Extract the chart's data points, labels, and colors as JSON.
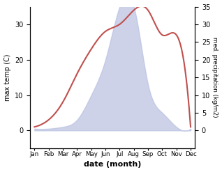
{
  "months": [
    "Jan",
    "Feb",
    "Mar",
    "Apr",
    "May",
    "Jun",
    "Jul",
    "Aug",
    "Sep",
    "Oct",
    "Nov",
    "Dec"
  ],
  "temperature": [
    1,
    3,
    8,
    16,
    23,
    28,
    30,
    34,
    34,
    27,
    27,
    1
  ],
  "precipitation": [
    0.5,
    0.5,
    1,
    3,
    10,
    20,
    35,
    35,
    13,
    5,
    1,
    0.5
  ],
  "temp_color": "#c0504d",
  "precip_fill_color": "#b8c0e0",
  "xlabel": "date (month)",
  "ylabel_left": "max temp (C)",
  "ylabel_right": "med. precipitation (kg/m2)",
  "ylim_left": [
    -5,
    35
  ],
  "ylim_right": [
    -5,
    35
  ],
  "yticks_left": [
    0,
    10,
    20,
    30
  ],
  "yticks_right": [
    0,
    5,
    10,
    15,
    20,
    25,
    30,
    35
  ],
  "bg_color": "#ffffff",
  "linewidth": 1.5
}
